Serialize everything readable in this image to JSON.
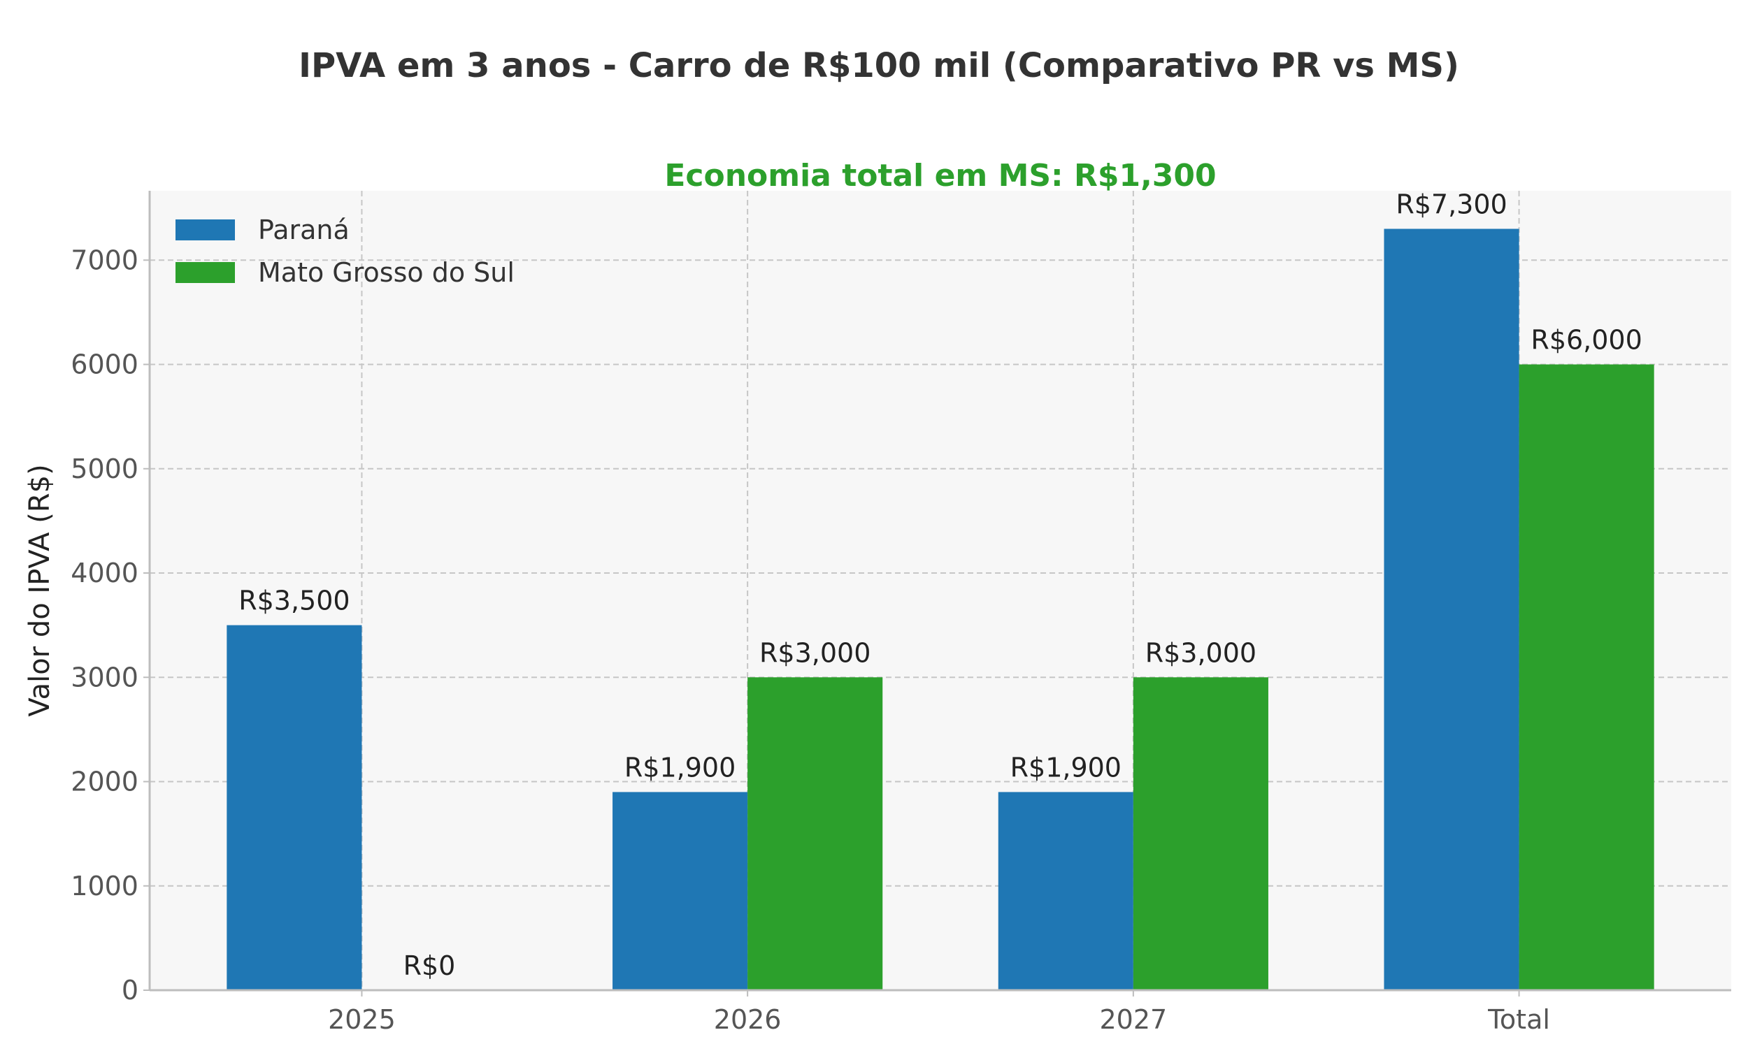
{
  "chart_data": {
    "type": "bar",
    "title": "IPVA em 3 anos - Carro de R$100 mil (Comparativo PR vs MS)",
    "subtitle": "Economia total em MS: R$1,300",
    "xlabel": "",
    "ylabel": "Valor do IPVA (R$)",
    "categories": [
      "2025",
      "2026",
      "2027",
      "Total"
    ],
    "series": [
      {
        "name": "Paraná",
        "color": "#1f77b4",
        "values": [
          3500,
          1900,
          1900,
          7300
        ],
        "labels": [
          "R$3,500",
          "R$1,900",
          "R$1,900",
          "R$7,300"
        ]
      },
      {
        "name": "Mato Grosso do Sul",
        "color": "#2ca02c",
        "values": [
          0,
          3000,
          3000,
          6000
        ],
        "labels": [
          "R$0",
          "R$3,000",
          "R$3,000",
          "R$6,000"
        ]
      }
    ],
    "ylim": [
      0,
      7665
    ],
    "yticks": [
      0,
      1000,
      2000,
      3000,
      4000,
      5000,
      6000,
      7000
    ],
    "ytick_labels": [
      "0",
      "1000",
      "2000",
      "3000",
      "4000",
      "5000",
      "6000",
      "7000"
    ],
    "grid": true,
    "legend_position": "top-left",
    "colors": {
      "subtitle": "#2ca02c",
      "plot_bg": "#f7f7f7",
      "grid": "#c6c6c6",
      "text": "#333333",
      "axis_text": "#555555"
    }
  }
}
